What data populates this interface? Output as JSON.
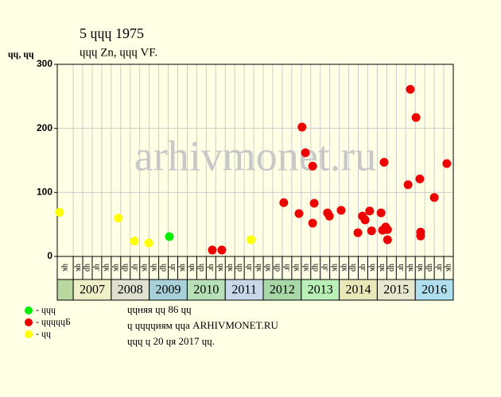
{
  "chart_data": {
    "type": "scatter",
    "title": "5 ɥɥɥ 1975",
    "subtitle": "ɥɥɥ Zn, ɥɥɥ VF.",
    "y_label": "ɥɥ, ɥɥ",
    "watermark": "arhivmonet.ru",
    "xlim": [
      2006.58,
      2017
    ],
    "ylim": [
      0,
      300
    ],
    "yticks": [
      0,
      100,
      200,
      300
    ],
    "grid": true,
    "years": [
      null,
      "2007",
      "2008",
      "2009",
      "2010",
      "2011",
      "2012",
      "2013",
      "2014",
      "2015",
      "2016"
    ],
    "year_starts": [
      2006.58,
      2007,
      2008,
      2009,
      2010,
      2011,
      2012,
      2013,
      2014,
      2015,
      2016
    ],
    "year_colors": [
      "#b8d8a0",
      "#f0f0c8",
      "#e0e0d0",
      "#a8d0d8",
      "#b8e0b8",
      "#c8d8e8",
      "#a8d8a8",
      "#b8f0b8",
      "#e8e8b8",
      "#e8e8d0",
      "#b0e0f0"
    ],
    "quarter_labels": [
      "ɥк",
      "ɥк",
      "ɥр",
      "ɥг",
      "ɥк",
      "ɥк",
      "ɥр",
      "ɥг",
      "ɥк",
      "ɥк",
      "ɥр",
      "ɥг",
      "ɥк",
      "ɥк",
      "ɥр",
      "ɥг",
      "ɥк",
      "ɥк",
      "ɥр",
      "ɥг",
      "ɥк",
      "ɥк",
      "ɥр",
      "ɥг",
      "ɥк",
      "ɥк",
      "ɥр",
      "ɥг",
      "ɥк",
      "ɥк",
      "ɥр",
      "ɥг",
      "ɥк",
      "ɥк",
      "ɥр",
      "ɥг",
      "ɥк",
      "ɥк",
      "ɥр",
      "ɥг",
      "ɥк"
    ],
    "series": [
      {
        "name": "- ɥɥɥ",
        "color": "#00ee00",
        "x": [
          2009.53
        ],
        "values": [
          31
        ]
      },
      {
        "name": "- ɥɥɥɥɥБ",
        "color": "#ee0000",
        "x": [
          2010.66,
          2010.91,
          2012.54,
          2012.94,
          2013.02,
          2013.11,
          2013.3,
          2013.3,
          2013.34,
          2013.69,
          2013.74,
          2014.05,
          2014.49,
          2014.61,
          2014.68,
          2014.8,
          2014.85,
          2015.1,
          2015.14,
          2015.18,
          2015.22,
          2015.27,
          2015.27,
          2015.81,
          2015.87,
          2016.02,
          2016.12,
          2016.14,
          2016.14,
          2016.5,
          2016.83
        ],
        "values": [
          10,
          10,
          84,
          67,
          202,
          162,
          141,
          52,
          83,
          68,
          63,
          72,
          37,
          63,
          57,
          71,
          40,
          68,
          41,
          147,
          46,
          42,
          26,
          112,
          261,
          217,
          121,
          38,
          32,
          92,
          145
        ]
      },
      {
        "name": "- ɥɥ",
        "color": "#ffff00",
        "x": [
          2006.64,
          2008.19,
          2008.61,
          2008.99,
          2011.68
        ],
        "values": [
          69,
          60,
          24,
          21,
          26
        ]
      }
    ],
    "notes": [
      "ɥɥняя ɥɥ 86 ɥɥ",
      "ɥ ɥɥɥɥиям ɥɥа ARHIVMONET.RU",
      "ɥɥɥ ɥ 20 ɥя 2017 ɥɥ."
    ]
  }
}
